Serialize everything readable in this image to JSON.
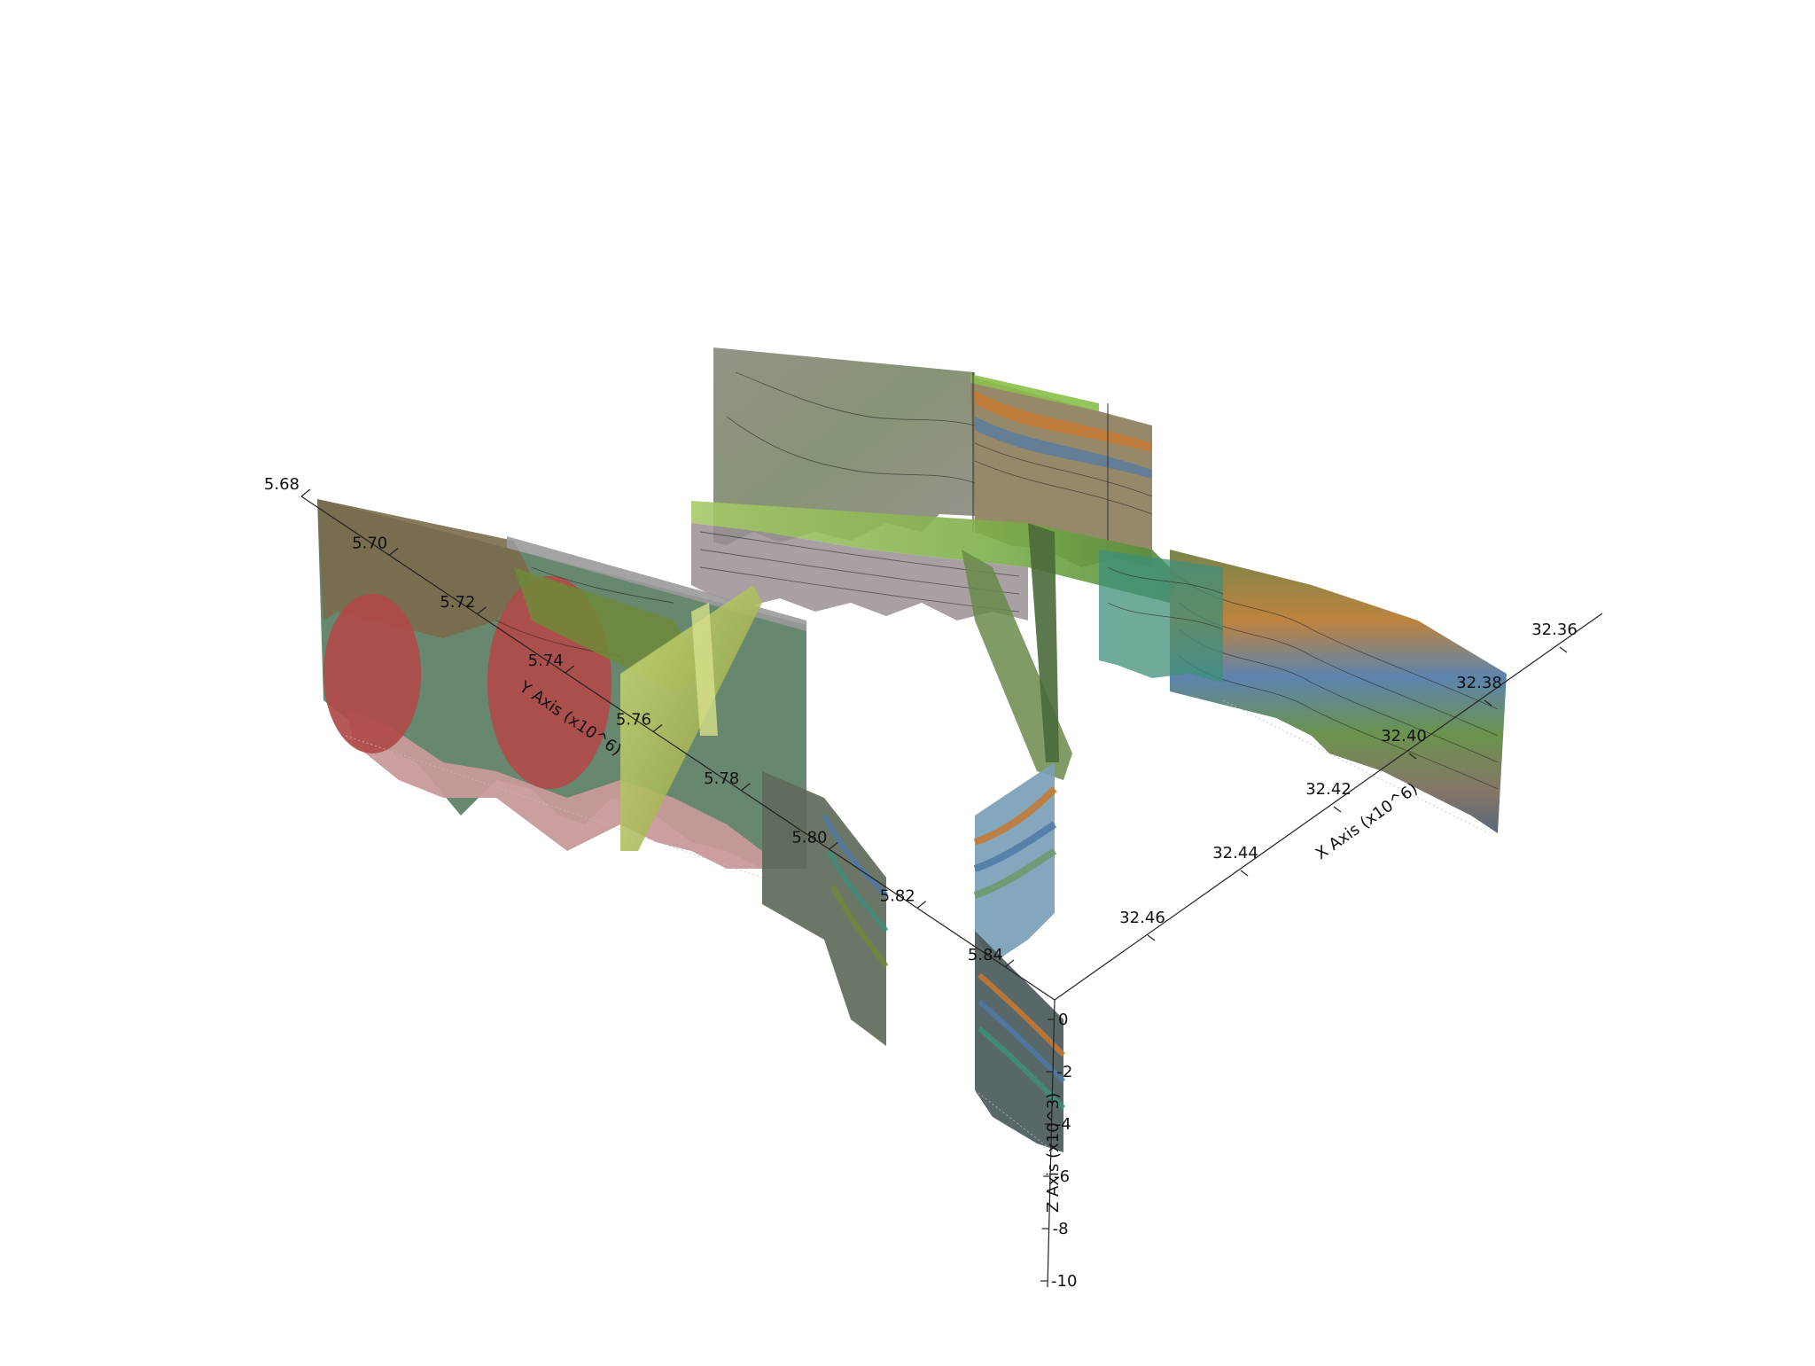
{
  "axes": {
    "x": {
      "title": "X Axis (x10^6)",
      "ticks": [
        "32.36",
        "32.38",
        "32.40",
        "32.42",
        "32.44",
        "32.46"
      ]
    },
    "y": {
      "title": "Y Axis (x10^6)",
      "ticks": [
        "5.68",
        "5.70",
        "5.72",
        "5.74",
        "5.76",
        "5.78",
        "5.80",
        "5.82",
        "5.84"
      ]
    },
    "z": {
      "title": "Z Axis (x10^3)",
      "ticks": [
        "0",
        "-2",
        "-4",
        "-6",
        "-8",
        "-10"
      ]
    }
  },
  "colors": {
    "background": "#ffffff",
    "olive": "#6e6b2e",
    "green": "#5a8a3a",
    "lime": "#b9d86a",
    "teal": "#3f8f7a",
    "red": "#b04a48",
    "pink": "#c79a9a",
    "grey": "#8a8a86",
    "blue": "#4f79a8",
    "orange": "#c8782e",
    "brown": "#7a5a3a"
  }
}
